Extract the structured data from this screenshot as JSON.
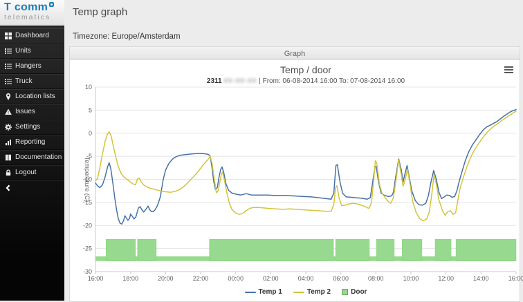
{
  "sidebar": {
    "logo": {
      "brand": "T comm",
      "sub": "telematics"
    },
    "items": [
      {
        "icon": "dashboard",
        "label": "Dashboard"
      },
      {
        "icon": "units",
        "label": "Units"
      },
      {
        "icon": "hangers",
        "label": "Hangers"
      },
      {
        "icon": "truck",
        "label": "Truck"
      },
      {
        "icon": "location",
        "label": "Location lists"
      },
      {
        "icon": "issues",
        "label": "Issues"
      },
      {
        "icon": "settings",
        "label": "Settings"
      },
      {
        "icon": "reporting",
        "label": "Reporting"
      },
      {
        "icon": "documentation",
        "label": "Documentation"
      },
      {
        "icon": "logout",
        "label": "Logout"
      }
    ]
  },
  "header": {
    "title": "Temp graph",
    "timezone": "Timezone: Europe/Amsterdam"
  },
  "panel": {
    "title": "Graph"
  },
  "chart_data": {
    "type": "line+column",
    "title": "Temp / door",
    "subtitle_unit": "2311",
    "subtitle_masked": "##-##-##",
    "subtitle_range": "| From: 06-08-2014 16:00 To: 07-08-2014 16:00",
    "ylabel": "Temperature (C)",
    "ylim": [
      -30,
      10
    ],
    "y_ticks": [
      10,
      5,
      0,
      -5,
      -10,
      -15,
      -20,
      -25,
      -30
    ],
    "x_hours": 24,
    "x_start_label": "16:00",
    "x_tick_labels": [
      "16:00",
      "18:00",
      "20:00",
      "22:00",
      "00:00",
      "02:00",
      "04:00",
      "06:00",
      "08:00",
      "10:00",
      "12:00",
      "14:00",
      "16:00"
    ],
    "grid_color": "#e4e4e4",
    "axis_color": "#c9c9c9",
    "label_color": "#606060",
    "series": [
      {
        "name": "Temp 1",
        "color": "#4572a7",
        "points": [
          [
            0,
            -10.8
          ],
          [
            0.12,
            -11.4
          ],
          [
            0.25,
            -11.8
          ],
          [
            0.4,
            -11.2
          ],
          [
            0.55,
            -9.5
          ],
          [
            0.7,
            -7.2
          ],
          [
            0.78,
            -6.4
          ],
          [
            0.88,
            -7.8
          ],
          [
            1.0,
            -11.0
          ],
          [
            1.1,
            -14.0
          ],
          [
            1.2,
            -16.5
          ],
          [
            1.3,
            -18.5
          ],
          [
            1.4,
            -19.5
          ],
          [
            1.5,
            -19.7
          ],
          [
            1.6,
            -19.0
          ],
          [
            1.68,
            -17.9
          ],
          [
            1.75,
            -18.3
          ],
          [
            1.85,
            -18.9
          ],
          [
            1.95,
            -18.4
          ],
          [
            2.0,
            -17.5
          ],
          [
            2.1,
            -18.0
          ],
          [
            2.2,
            -18.6
          ],
          [
            2.3,
            -18.2
          ],
          [
            2.45,
            -16.2
          ],
          [
            2.55,
            -15.9
          ],
          [
            2.65,
            -16.6
          ],
          [
            2.75,
            -17.1
          ],
          [
            2.9,
            -16.4
          ],
          [
            3.0,
            -15.8
          ],
          [
            3.1,
            -16.6
          ],
          [
            3.2,
            -17.0
          ],
          [
            3.3,
            -17.0
          ],
          [
            3.4,
            -16.6
          ],
          [
            3.55,
            -15.6
          ],
          [
            3.7,
            -13.8
          ],
          [
            3.87,
            -10.0
          ],
          [
            4.0,
            -8.0
          ],
          [
            4.2,
            -6.5
          ],
          [
            4.4,
            -5.6
          ],
          [
            4.6,
            -5.1
          ],
          [
            4.8,
            -4.8
          ],
          [
            5.0,
            -4.7
          ],
          [
            5.2,
            -4.6
          ],
          [
            5.5,
            -4.5
          ],
          [
            5.8,
            -4.4
          ],
          [
            6.1,
            -4.4
          ],
          [
            6.3,
            -4.5
          ],
          [
            6.45,
            -4.6
          ],
          [
            6.55,
            -5.0
          ],
          [
            6.65,
            -7.5
          ],
          [
            6.75,
            -10.5
          ],
          [
            6.85,
            -12.2
          ],
          [
            6.95,
            -11.8
          ],
          [
            7.05,
            -9.5
          ],
          [
            7.15,
            -7.8
          ],
          [
            7.22,
            -7.3
          ],
          [
            7.32,
            -8.5
          ],
          [
            7.45,
            -11.0
          ],
          [
            7.6,
            -12.4
          ],
          [
            7.8,
            -13.0
          ],
          [
            8.0,
            -13.2
          ],
          [
            8.3,
            -13.4
          ],
          [
            8.6,
            -13.1
          ],
          [
            8.9,
            -13.4
          ],
          [
            9.3,
            -13.4
          ],
          [
            9.8,
            -13.4
          ],
          [
            10.3,
            -13.5
          ],
          [
            10.8,
            -13.5
          ],
          [
            11.3,
            -13.6
          ],
          [
            11.8,
            -13.7
          ],
          [
            12.3,
            -13.8
          ],
          [
            12.8,
            -14.0
          ],
          [
            13.2,
            -14.2
          ],
          [
            13.45,
            -14.3
          ],
          [
            13.6,
            -13.0
          ],
          [
            13.72,
            -7.0
          ],
          [
            13.8,
            -6.8
          ],
          [
            13.95,
            -10.5
          ],
          [
            14.1,
            -13.0
          ],
          [
            14.3,
            -13.8
          ],
          [
            14.6,
            -13.9
          ],
          [
            14.9,
            -14.0
          ],
          [
            15.2,
            -14.1
          ],
          [
            15.5,
            -14.3
          ],
          [
            15.68,
            -14.0
          ],
          [
            15.8,
            -11.0
          ],
          [
            15.95,
            -7.3
          ],
          [
            16.02,
            -7.2
          ],
          [
            16.15,
            -10.5
          ],
          [
            16.3,
            -13.0
          ],
          [
            16.5,
            -13.5
          ],
          [
            16.7,
            -13.7
          ],
          [
            16.9,
            -13.6
          ],
          [
            17.0,
            -12.8
          ],
          [
            17.15,
            -9.0
          ],
          [
            17.3,
            -5.6
          ],
          [
            17.45,
            -8.0
          ],
          [
            17.55,
            -10.6
          ],
          [
            17.65,
            -9.0
          ],
          [
            17.78,
            -7.0
          ],
          [
            17.9,
            -9.5
          ],
          [
            18.05,
            -12.5
          ],
          [
            18.25,
            -14.6
          ],
          [
            18.45,
            -15.5
          ],
          [
            18.65,
            -15.6
          ],
          [
            18.85,
            -15.2
          ],
          [
            19.0,
            -13.5
          ],
          [
            19.15,
            -10.5
          ],
          [
            19.3,
            -8.1
          ],
          [
            19.45,
            -10.0
          ],
          [
            19.6,
            -12.8
          ],
          [
            19.75,
            -14.2
          ],
          [
            19.9,
            -13.8
          ],
          [
            20.05,
            -13.4
          ],
          [
            20.2,
            -13.5
          ],
          [
            20.35,
            -13.9
          ],
          [
            20.5,
            -13.7
          ],
          [
            20.62,
            -12.5
          ],
          [
            20.75,
            -10.5
          ],
          [
            20.9,
            -8.5
          ],
          [
            21.1,
            -6.0
          ],
          [
            21.3,
            -4.0
          ],
          [
            21.5,
            -2.6
          ],
          [
            21.7,
            -1.5
          ],
          [
            21.9,
            -0.4
          ],
          [
            22.1,
            0.6
          ],
          [
            22.3,
            1.3
          ],
          [
            22.5,
            1.7
          ],
          [
            22.7,
            2.1
          ],
          [
            22.9,
            2.5
          ],
          [
            23.1,
            3.1
          ],
          [
            23.3,
            3.7
          ],
          [
            23.5,
            4.2
          ],
          [
            23.7,
            4.7
          ],
          [
            23.9,
            5.0
          ],
          [
            24,
            5.1
          ]
        ]
      },
      {
        "name": "Temp 2",
        "color": "#d4c43c",
        "points": [
          [
            0,
            -10.3
          ],
          [
            0.12,
            -9.8
          ],
          [
            0.25,
            -7.5
          ],
          [
            0.4,
            -4.5
          ],
          [
            0.55,
            -1.8
          ],
          [
            0.68,
            -0.2
          ],
          [
            0.78,
            0.3
          ],
          [
            0.9,
            -0.6
          ],
          [
            1.0,
            -2.5
          ],
          [
            1.15,
            -5.0
          ],
          [
            1.3,
            -7.2
          ],
          [
            1.45,
            -8.6
          ],
          [
            1.6,
            -9.4
          ],
          [
            1.8,
            -10.0
          ],
          [
            2.0,
            -10.6
          ],
          [
            2.15,
            -11.0
          ],
          [
            2.28,
            -11.2
          ],
          [
            2.4,
            -9.9
          ],
          [
            2.5,
            -9.7
          ],
          [
            2.62,
            -10.6
          ],
          [
            2.75,
            -11.2
          ],
          [
            2.9,
            -11.6
          ],
          [
            3.1,
            -11.9
          ],
          [
            3.4,
            -12.2
          ],
          [
            3.7,
            -12.5
          ],
          [
            4.0,
            -12.7
          ],
          [
            4.3,
            -12.8
          ],
          [
            4.55,
            -12.6
          ],
          [
            4.8,
            -12.2
          ],
          [
            5.0,
            -11.7
          ],
          [
            5.2,
            -11.0
          ],
          [
            5.4,
            -10.2
          ],
          [
            5.6,
            -9.4
          ],
          [
            5.8,
            -8.6
          ],
          [
            6.0,
            -7.6
          ],
          [
            6.2,
            -6.6
          ],
          [
            6.4,
            -5.8
          ],
          [
            6.55,
            -5.0
          ],
          [
            6.65,
            -6.5
          ],
          [
            6.78,
            -10.0
          ],
          [
            6.9,
            -12.9
          ],
          [
            7.0,
            -12.5
          ],
          [
            7.1,
            -10.5
          ],
          [
            7.18,
            -8.9
          ],
          [
            7.25,
            -8.4
          ],
          [
            7.35,
            -10.0
          ],
          [
            7.5,
            -13.0
          ],
          [
            7.65,
            -15.3
          ],
          [
            7.8,
            -16.6
          ],
          [
            8.0,
            -17.3
          ],
          [
            8.2,
            -17.6
          ],
          [
            8.4,
            -17.4
          ],
          [
            8.6,
            -16.8
          ],
          [
            8.8,
            -16.3
          ],
          [
            9.0,
            -16.1
          ],
          [
            9.3,
            -16.1
          ],
          [
            9.6,
            -16.2
          ],
          [
            9.9,
            -16.3
          ],
          [
            10.3,
            -16.4
          ],
          [
            10.7,
            -16.5
          ],
          [
            11.1,
            -16.4
          ],
          [
            11.5,
            -16.5
          ],
          [
            11.9,
            -16.6
          ],
          [
            12.3,
            -16.7
          ],
          [
            12.7,
            -16.8
          ],
          [
            13.1,
            -16.9
          ],
          [
            13.45,
            -16.9
          ],
          [
            13.6,
            -15.5
          ],
          [
            13.7,
            -11.8
          ],
          [
            13.78,
            -11.4
          ],
          [
            13.9,
            -14.0
          ],
          [
            14.05,
            -15.7
          ],
          [
            14.25,
            -15.6
          ],
          [
            14.5,
            -15.3
          ],
          [
            14.75,
            -15.2
          ],
          [
            15.0,
            -15.4
          ],
          [
            15.3,
            -15.8
          ],
          [
            15.6,
            -16.3
          ],
          [
            15.75,
            -15.0
          ],
          [
            15.88,
            -10.0
          ],
          [
            15.97,
            -5.9
          ],
          [
            16.05,
            -6.5
          ],
          [
            16.2,
            -11.0
          ],
          [
            16.35,
            -13.0
          ],
          [
            16.5,
            -13.8
          ],
          [
            16.65,
            -14.6
          ],
          [
            16.85,
            -15.2
          ],
          [
            17.0,
            -14.0
          ],
          [
            17.15,
            -10.0
          ],
          [
            17.3,
            -5.8
          ],
          [
            17.45,
            -9.0
          ],
          [
            17.55,
            -11.5
          ],
          [
            17.68,
            -10.0
          ],
          [
            17.8,
            -7.8
          ],
          [
            17.95,
            -11.0
          ],
          [
            18.1,
            -14.8
          ],
          [
            18.3,
            -17.2
          ],
          [
            18.5,
            -18.5
          ],
          [
            18.7,
            -19.0
          ],
          [
            18.9,
            -18.6
          ],
          [
            19.05,
            -17.0
          ],
          [
            19.2,
            -13.0
          ],
          [
            19.32,
            -8.9
          ],
          [
            19.45,
            -11.0
          ],
          [
            19.6,
            -14.5
          ],
          [
            19.8,
            -16.8
          ],
          [
            19.95,
            -17.8
          ],
          [
            20.1,
            -17.0
          ],
          [
            20.25,
            -16.8
          ],
          [
            20.4,
            -17.6
          ],
          [
            20.55,
            -17.2
          ],
          [
            20.68,
            -14.5
          ],
          [
            20.8,
            -12.0
          ],
          [
            21.0,
            -9.5
          ],
          [
            21.2,
            -7.2
          ],
          [
            21.4,
            -5.3
          ],
          [
            21.6,
            -3.8
          ],
          [
            21.8,
            -2.6
          ],
          [
            22.0,
            -1.5
          ],
          [
            22.2,
            -0.5
          ],
          [
            22.4,
            0.4
          ],
          [
            22.6,
            1.1
          ],
          [
            22.8,
            1.7
          ],
          [
            23.0,
            2.2
          ],
          [
            23.2,
            2.8
          ],
          [
            23.4,
            3.3
          ],
          [
            23.6,
            3.8
          ],
          [
            23.8,
            4.3
          ],
          [
            24,
            4.8
          ]
        ]
      }
    ],
    "door": {
      "name": "Door",
      "color": "#97d98e",
      "edge": "#86d07c",
      "top_value": -23,
      "base_top": -26.7,
      "base_bottom": -27.7,
      "intervals": [
        [
          0.6,
          2.28
        ],
        [
          2.4,
          3.47
        ],
        [
          6.5,
          13.58
        ],
        [
          13.7,
          15.63
        ],
        [
          16.03,
          17.05
        ],
        [
          17.5,
          18.63
        ],
        [
          19.38,
          20.29
        ],
        [
          20.57,
          24
        ]
      ]
    },
    "legend": [
      {
        "label": "Temp 1",
        "color": "#4572a7",
        "swatch": "line"
      },
      {
        "label": "Temp 2",
        "color": "#d4c43c",
        "swatch": "line"
      },
      {
        "label": "Door",
        "color": "#97d98e",
        "swatch": "box"
      }
    ]
  }
}
